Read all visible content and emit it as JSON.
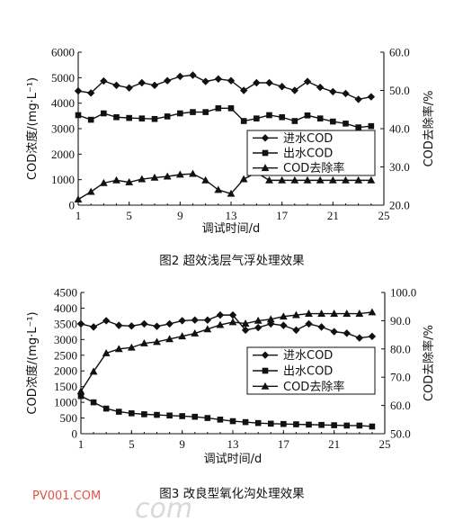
{
  "chart_data": [
    {
      "type": "line",
      "caption": "图2  超效浅层气浮处理效果",
      "xlabel": "调试时间/d",
      "ylabel": "COD浓度/(mg·L⁻¹)",
      "y2label": "COD去除率/%",
      "xlim": [
        1,
        25
      ],
      "xticks": [
        "1",
        "5",
        "9",
        "13",
        "17",
        "21",
        "25"
      ],
      "ylim": [
        0,
        6000
      ],
      "yticks": [
        "0",
        "1000",
        "2000",
        "3000",
        "4000",
        "5000",
        "6000"
      ],
      "y2lim": [
        20,
        60
      ],
      "y2ticks": [
        "20.0",
        "30.0",
        "40.0",
        "50.0",
        "60.0"
      ],
      "legend_position": "inside-right",
      "x": [
        1,
        2,
        3,
        4,
        5,
        6,
        7,
        8,
        9,
        10,
        11,
        12,
        13,
        14,
        15,
        16,
        17,
        18,
        19,
        20,
        21,
        22,
        23,
        24
      ],
      "series": [
        {
          "name": "进水COD",
          "axis": "left",
          "marker": "diamond",
          "values": [
            4480,
            4400,
            4870,
            4700,
            4600,
            4800,
            4700,
            4880,
            5050,
            5100,
            4850,
            4950,
            4880,
            4500,
            4800,
            4800,
            4650,
            4500,
            4850,
            4620,
            4450,
            4380,
            4150,
            4250
          ]
        },
        {
          "name": "出水COD",
          "axis": "left",
          "marker": "square",
          "values": [
            3530,
            3350,
            3600,
            3450,
            3420,
            3400,
            3380,
            3480,
            3600,
            3650,
            3650,
            3800,
            3800,
            3300,
            3400,
            3530,
            3450,
            3300,
            3520,
            3400,
            3280,
            3200,
            3050,
            3100
          ]
        },
        {
          "name": "COD去除率",
          "axis": "right",
          "marker": "triangle",
          "values": [
            21.5,
            23.5,
            25.8,
            26.5,
            26.0,
            26.8,
            27.2,
            27.5,
            28.0,
            28.2,
            26.5,
            24.0,
            23.0,
            26.8,
            28.5,
            26.5,
            26.5,
            26.5,
            26.5,
            26.5,
            26.5,
            26.5,
            26.5,
            26.5
          ]
        }
      ]
    },
    {
      "type": "line",
      "caption": "图3  改良型氧化沟处理效果",
      "xlabel": "调试时间/d",
      "ylabel": "COD浓度/(mg·L⁻¹)",
      "y2label": "COD去除率/%",
      "xlim": [
        1,
        25
      ],
      "xticks": [
        "1",
        "5",
        "9",
        "13",
        "17",
        "21",
        "25"
      ],
      "ylim": [
        0,
        4500
      ],
      "yticks": [
        "0",
        "500",
        "1000",
        "1500",
        "2000",
        "2500",
        "3000",
        "3500",
        "4000",
        "4500"
      ],
      "y2lim": [
        50,
        100
      ],
      "y2ticks": [
        "50.0",
        "60.0",
        "70.0",
        "80.0",
        "90.0",
        "100.0"
      ],
      "legend_position": "inside-right",
      "x": [
        1,
        2,
        3,
        4,
        5,
        6,
        7,
        8,
        9,
        10,
        11,
        12,
        13,
        14,
        15,
        16,
        17,
        18,
        19,
        20,
        21,
        22,
        23,
        24
      ],
      "series": [
        {
          "name": "进水COD",
          "axis": "left",
          "marker": "diamond",
          "values": [
            3500,
            3400,
            3600,
            3450,
            3430,
            3500,
            3420,
            3500,
            3600,
            3620,
            3620,
            3780,
            3780,
            3300,
            3380,
            3500,
            3450,
            3300,
            3500,
            3400,
            3250,
            3200,
            3050,
            3100
          ]
        },
        {
          "name": "出水COD",
          "axis": "left",
          "marker": "square",
          "values": [
            1200,
            1000,
            800,
            700,
            650,
            620,
            600,
            580,
            560,
            540,
            500,
            450,
            400,
            370,
            340,
            320,
            310,
            300,
            290,
            280,
            270,
            260,
            260,
            230
          ]
        },
        {
          "name": "COD去除率",
          "axis": "right",
          "marker": "triangle",
          "values": [
            65.0,
            72.0,
            78.5,
            80.0,
            80.5,
            82.0,
            82.5,
            83.5,
            84.5,
            85.5,
            87.0,
            88.5,
            89.5,
            89.0,
            90.0,
            90.5,
            91.5,
            92.0,
            92.5,
            92.5,
            92.5,
            92.5,
            92.5,
            93.0
          ]
        }
      ]
    }
  ],
  "watermark": {
    "text": "PV001.COM",
    "ghost": "com",
    "color": "#e0524a"
  }
}
